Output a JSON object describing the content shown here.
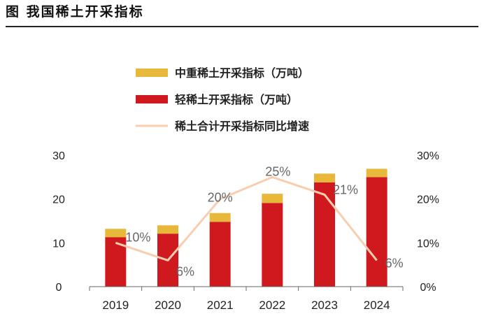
{
  "header": {
    "title": "图  我国稀土开采指标"
  },
  "colors": {
    "heavy": "#E8B83A",
    "light": "#D0191E",
    "growth": "#F8CDB0",
    "axis": "#666666"
  },
  "chart_data": {
    "type": "bar",
    "stacked": true,
    "categories": [
      "2019",
      "2020",
      "2021",
      "2022",
      "2023",
      "2024"
    ],
    "series": [
      {
        "name": "中重稀土开采指标（万吨）",
        "values": [
          1.9,
          1.9,
          2.0,
          2.1,
          2.0,
          1.9
        ],
        "axis": "left",
        "kind": "bar"
      },
      {
        "name": "轻稀土开采指标（万吨）",
        "values": [
          11.3,
          12.1,
          14.8,
          19.1,
          23.8,
          25.0
        ],
        "axis": "left",
        "kind": "bar"
      },
      {
        "name": "稀土合计开采指标同比增速",
        "values": [
          0.1,
          0.06,
          0.2,
          0.25,
          0.21,
          0.06
        ],
        "labels": [
          "10%",
          "6%",
          "20%",
          "25%",
          "21%",
          "6%"
        ],
        "axis": "right",
        "kind": "line"
      }
    ],
    "ylim": [
      0,
      30
    ],
    "yticks": [
      "0",
      "10",
      "20",
      "30"
    ],
    "y2lim": [
      0,
      0.3
    ],
    "y2ticks": [
      "0%",
      "10%",
      "20%",
      "30%"
    ],
    "legend": "top-center"
  }
}
